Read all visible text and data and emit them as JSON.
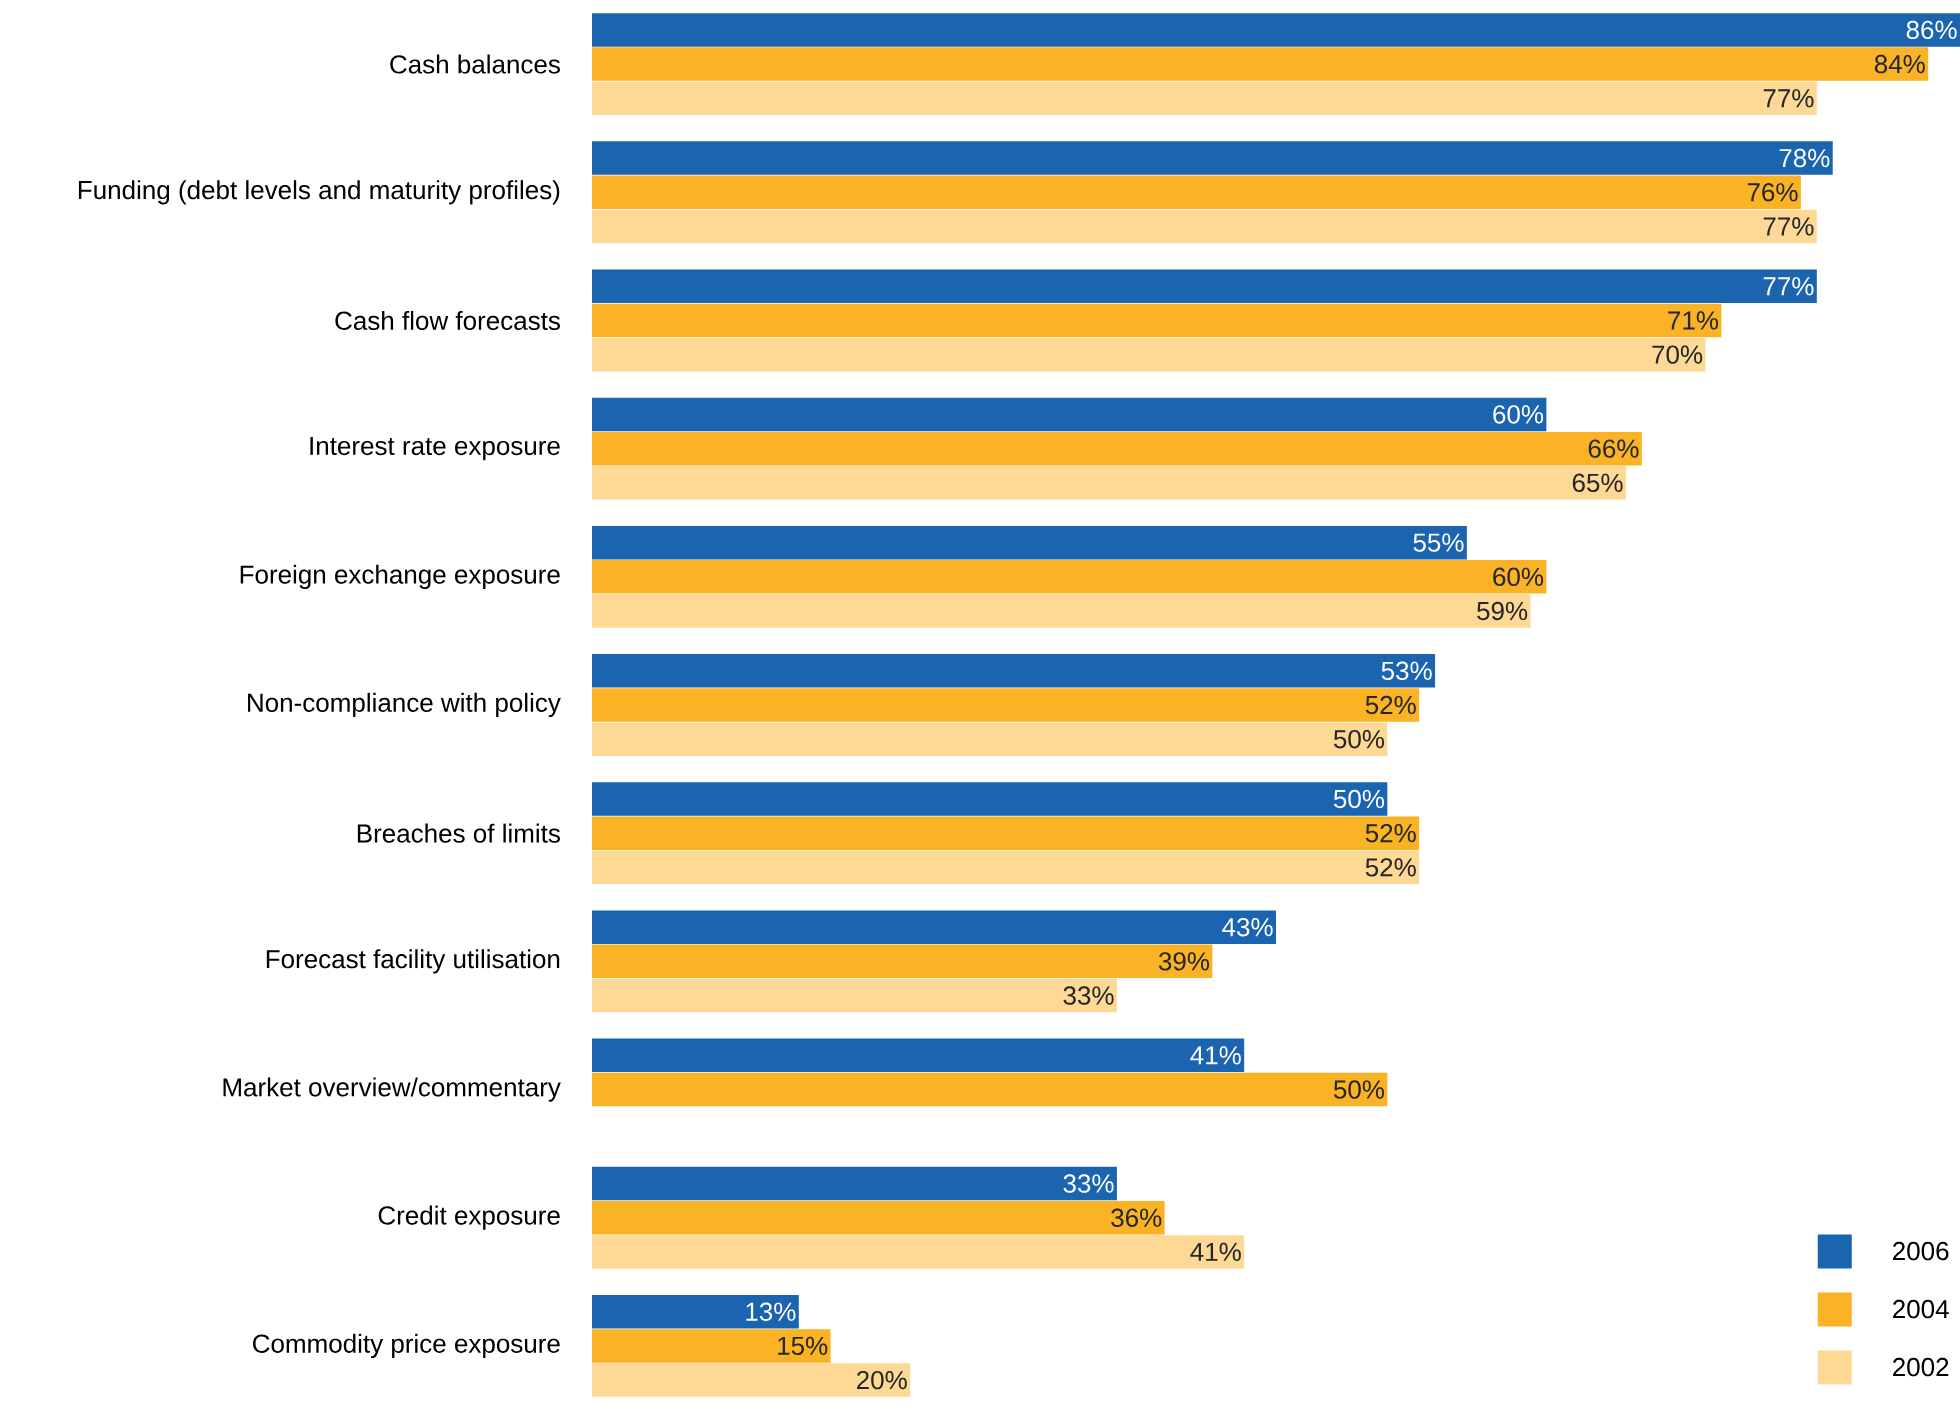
{
  "chart_data": {
    "type": "bar",
    "orientation": "horizontal",
    "legend": "bottom right",
    "tick_labels": "y",
    "categories": [
      "Cash balances",
      "Funding (debt levels and maturity profiles)",
      "Cash flow forecasts",
      "Interest rate exposure",
      "Foreign exchange exposure",
      "Non-compliance with policy",
      "Breaches of limits",
      "Forecast facility utilisation",
      "Market overview/commentary",
      "Credit exposure",
      "Commodity price exposure"
    ],
    "series": [
      {
        "name": "2006",
        "color": "#1a64b0",
        "values": [
          86,
          78,
          77,
          60,
          55,
          53,
          50,
          43,
          41,
          33,
          13
        ],
        "value_labels": [
          "86%",
          "78%",
          "77%",
          "60%",
          "55%",
          "53%",
          "50%",
          "43%",
          "41%",
          "33%",
          "13%"
        ]
      },
      {
        "name": "2004",
        "color": "#f9b324",
        "values": [
          84,
          76,
          71,
          66,
          60,
          52,
          52,
          39,
          50,
          36,
          15
        ],
        "value_labels": [
          "84%",
          "76%",
          "71%",
          "66%",
          "60%",
          "52%",
          "52%",
          "39%",
          "50%",
          "36%",
          "15%"
        ]
      },
      {
        "name": "2002",
        "color": "#fdd995",
        "values": [
          77,
          77,
          70,
          65,
          59,
          50,
          52,
          33,
          null,
          41,
          20
        ],
        "value_labels": [
          "77%",
          "77%",
          "70%",
          "65%",
          "59%",
          "50%",
          "52%",
          "33%",
          null,
          "41%",
          "20%"
        ]
      }
    ]
  }
}
